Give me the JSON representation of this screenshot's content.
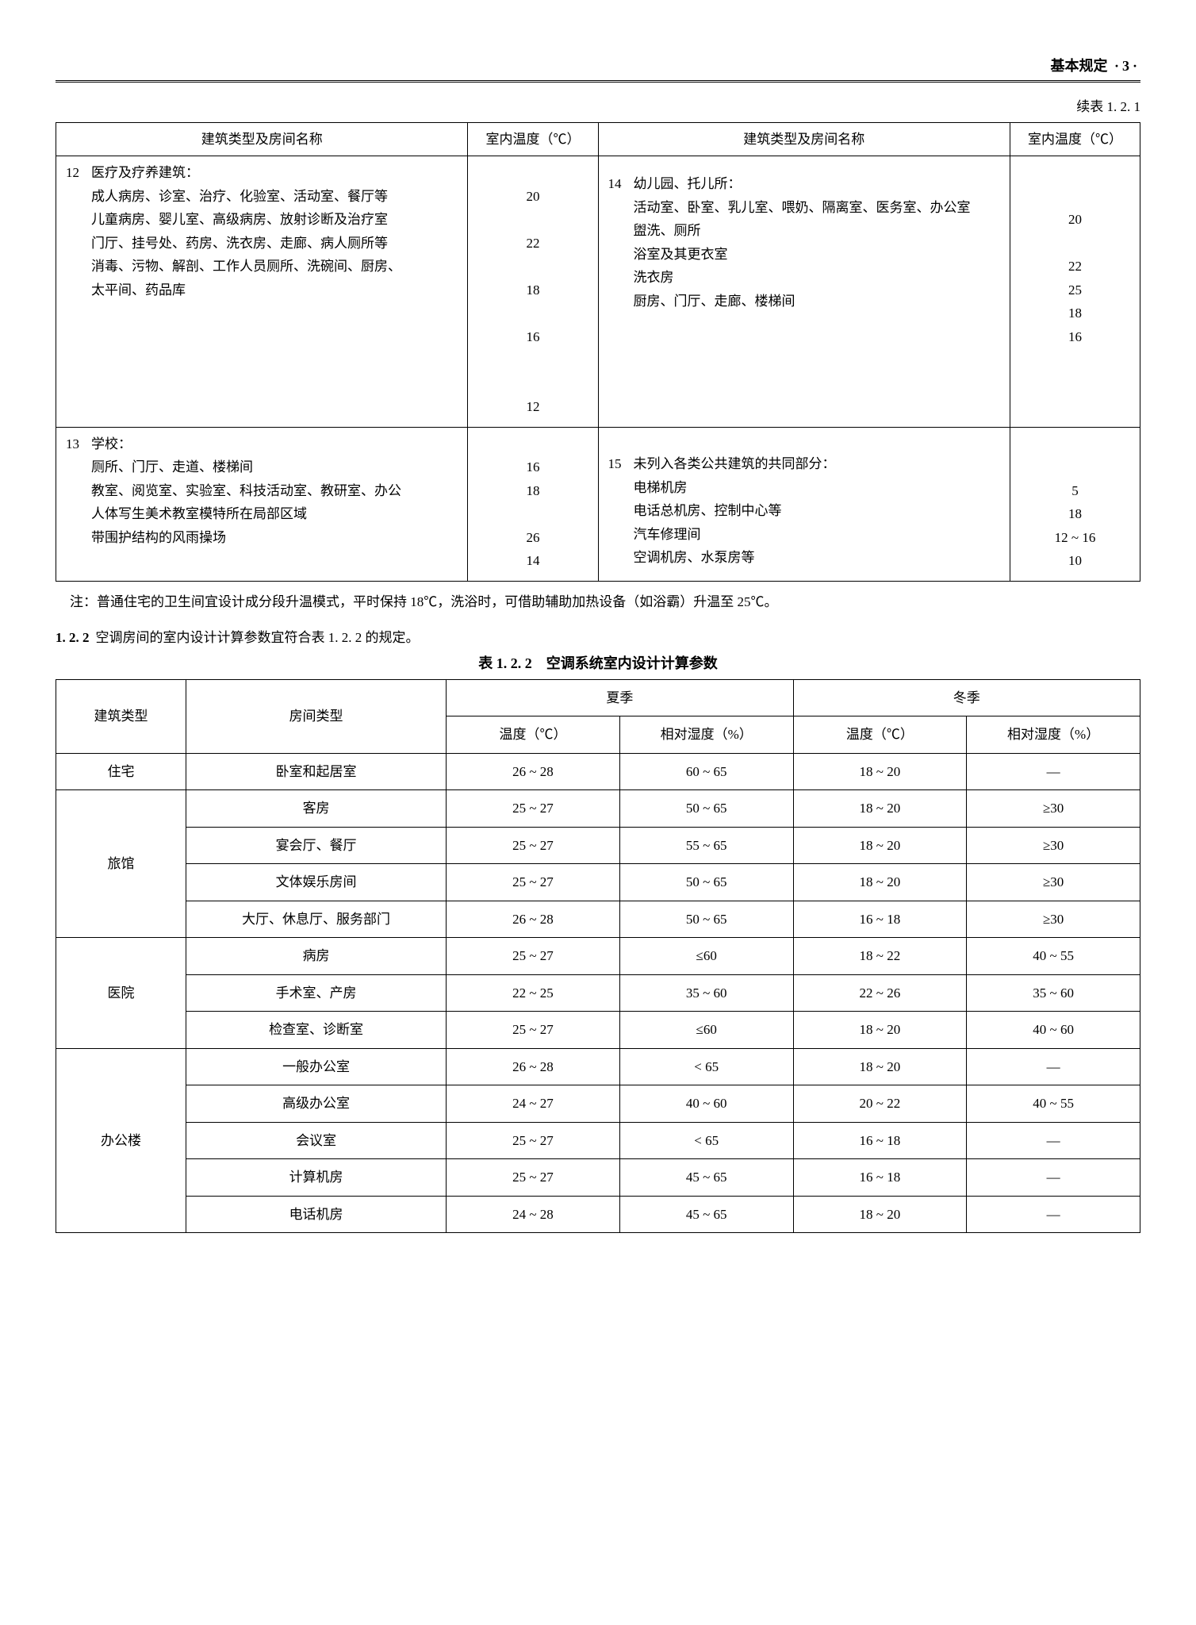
{
  "header": {
    "section": "基本规定",
    "sep": "·",
    "page": "3"
  },
  "t1_cont": "续表 1. 2. 1",
  "t1": {
    "h_name": "建筑类型及房间名称",
    "h_temp": "室内温度（℃）",
    "c12": {
      "idx": "12",
      "title": "医疗及疗养建筑：",
      "l1": "成人病房、诊室、治疗、化验室、活动室、餐厅等",
      "l2": "儿童病房、婴儿室、高级病房、放射诊断及治疗室",
      "l3": "门厅、挂号处、药房、洗衣房、走廊、病人厕所等",
      "l4": "消毒、污物、解剖、工作人员厕所、洗碗间、厨房、",
      "l5": "太平间、药品库",
      "v1": "20",
      "v2": "22",
      "v3": "18",
      "v4": "16",
      "v5": "12"
    },
    "c14": {
      "idx": "14",
      "title": "幼儿园、托儿所：",
      "l1": "活动室、卧室、乳儿室、喂奶、隔离室、医务室、办公室",
      "l2": "盥洗、厕所",
      "l3": "浴室及其更衣室",
      "l4": "洗衣房",
      "l5": "厨房、门厅、走廊、楼梯间",
      "v1": "20",
      "v2": "22",
      "v3": "25",
      "v4": "18",
      "v5": "16"
    },
    "c13": {
      "idx": "13",
      "title": "学校：",
      "l1": "厕所、门厅、走道、楼梯间",
      "l2": "教室、阅览室、实验室、科技活动室、教研室、办公",
      "l3": "人体写生美术教室模特所在局部区域",
      "l4": "带围护结构的风雨操场",
      "v1": "16",
      "v2": "18",
      "v3": "26",
      "v4": "14"
    },
    "c15": {
      "idx": "15",
      "title": "未列入各类公共建筑的共同部分：",
      "l1": "电梯机房",
      "l2": "电话总机房、控制中心等",
      "l3": "汽车修理间",
      "l4": "空调机房、水泵房等",
      "v1": "5",
      "v2": "18",
      "v3": "12 ~ 16",
      "v4": "10"
    }
  },
  "note": "注：普通住宅的卫生间宜设计成分段升温模式，平时保持 18℃，洗浴时，可借助辅助加热设备（如浴霸）升温至 25℃。",
  "clause": {
    "num": "1. 2. 2",
    "text": "空调房间的室内设计计算参数宜符合表 1. 2. 2 的规定。"
  },
  "t2_title": "表 1. 2. 2　空调系统室内设计计算参数",
  "t2": {
    "h_btype": "建筑类型",
    "h_rtype": "房间类型",
    "h_summer": "夏季",
    "h_winter": "冬季",
    "h_temp": "温度（℃）",
    "h_rh": "相对湿度（%）",
    "groups": [
      {
        "b": "住宅",
        "rows": [
          {
            "r": "卧室和起居室",
            "st": "26 ~ 28",
            "sh": "60 ~ 65",
            "wt": "18 ~ 20",
            "wh": "—"
          }
        ]
      },
      {
        "b": "旅馆",
        "rows": [
          {
            "r": "客房",
            "st": "25 ~ 27",
            "sh": "50 ~ 65",
            "wt": "18 ~ 20",
            "wh": "≥30"
          },
          {
            "r": "宴会厅、餐厅",
            "st": "25 ~ 27",
            "sh": "55 ~ 65",
            "wt": "18 ~ 20",
            "wh": "≥30"
          },
          {
            "r": "文体娱乐房间",
            "st": "25 ~ 27",
            "sh": "50 ~ 65",
            "wt": "18 ~ 20",
            "wh": "≥30"
          },
          {
            "r": "大厅、休息厅、服务部门",
            "st": "26 ~ 28",
            "sh": "50 ~ 65",
            "wt": "16 ~ 18",
            "wh": "≥30"
          }
        ]
      },
      {
        "b": "医院",
        "rows": [
          {
            "r": "病房",
            "st": "25 ~ 27",
            "sh": "≤60",
            "wt": "18 ~ 22",
            "wh": "40 ~ 55"
          },
          {
            "r": "手术室、产房",
            "st": "22 ~ 25",
            "sh": "35 ~ 60",
            "wt": "22 ~ 26",
            "wh": "35 ~ 60"
          },
          {
            "r": "检查室、诊断室",
            "st": "25 ~ 27",
            "sh": "≤60",
            "wt": "18 ~ 20",
            "wh": "40 ~ 60"
          }
        ]
      },
      {
        "b": "办公楼",
        "rows": [
          {
            "r": "一般办公室",
            "st": "26 ~ 28",
            "sh": "< 65",
            "wt": "18 ~ 20",
            "wh": "—"
          },
          {
            "r": "高级办公室",
            "st": "24 ~ 27",
            "sh": "40 ~ 60",
            "wt": "20 ~ 22",
            "wh": "40 ~ 55"
          },
          {
            "r": "会议室",
            "st": "25 ~ 27",
            "sh": "< 65",
            "wt": "16 ~ 18",
            "wh": "—"
          },
          {
            "r": "计算机房",
            "st": "25 ~ 27",
            "sh": "45 ~ 65",
            "wt": "16 ~ 18",
            "wh": "—"
          },
          {
            "r": "电话机房",
            "st": "24 ~ 28",
            "sh": "45 ~ 65",
            "wt": "18 ~ 20",
            "wh": "—"
          }
        ]
      }
    ]
  }
}
